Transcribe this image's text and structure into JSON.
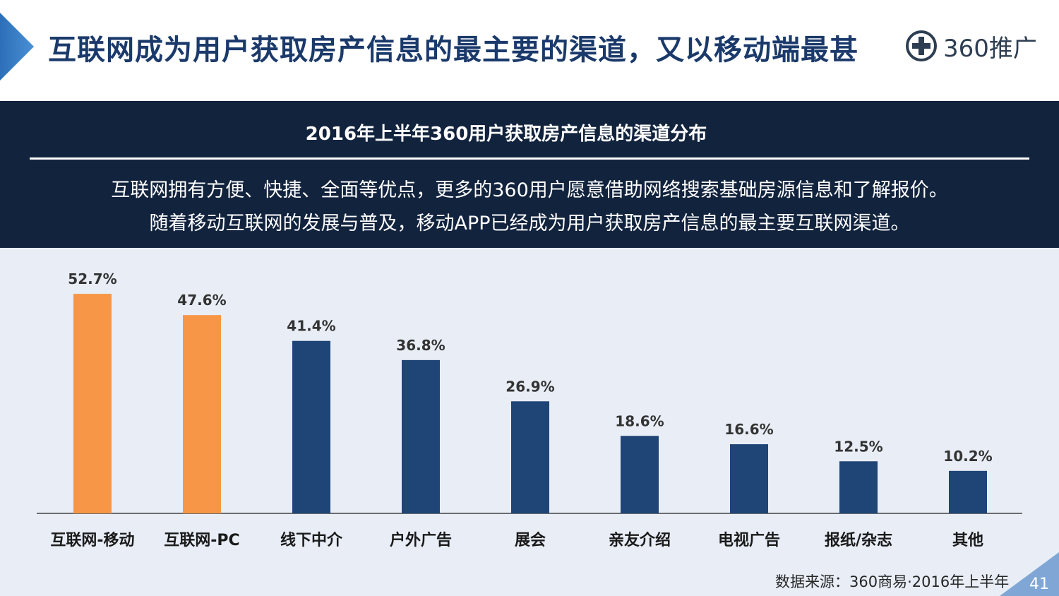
{
  "header": {
    "title": "互联网成为用户获取房产信息的最主要的渠道，又以移动端最甚",
    "logo_text": "360推广"
  },
  "banner": {
    "line1": "互联网拥有方便、快捷、全面等优点，更多的360用户愿意借助网络搜索基础房源信息和了解报价。",
    "line2": "随着移动互联网的发展与普及，移动APP已经成为用户获取房产信息的最主要互联网渠道。"
  },
  "colors": {
    "highlight": "#f79646",
    "default_bar": "#1f4577",
    "banner_bg": "#12233e",
    "chart_bg": "#e8edf6",
    "title": "#1b3a6b"
  },
  "chart_data": {
    "type": "bar",
    "title": "2016年上半年360用户获取房产信息的渠道分布",
    "categories": [
      "互联网-移动",
      "互联网-PC",
      "线下中介",
      "户外广告",
      "展会",
      "亲友介绍",
      "电视广告",
      "报纸/杂志",
      "其他"
    ],
    "values": [
      52.7,
      47.6,
      41.4,
      36.8,
      26.9,
      18.6,
      16.6,
      12.5,
      10.2
    ],
    "value_labels": [
      "52.7%",
      "47.6%",
      "41.4%",
      "36.8%",
      "26.9%",
      "18.6%",
      "16.6%",
      "12.5%",
      "10.2%"
    ],
    "highlighted": [
      true,
      true,
      false,
      false,
      false,
      false,
      false,
      false,
      false
    ],
    "xlabel": "",
    "ylabel": "",
    "ylim": [
      0,
      60
    ],
    "grid": false,
    "legend": "none"
  },
  "footer": {
    "source": "数据来源：360商易·2016年上半年",
    "page_number": "41"
  }
}
